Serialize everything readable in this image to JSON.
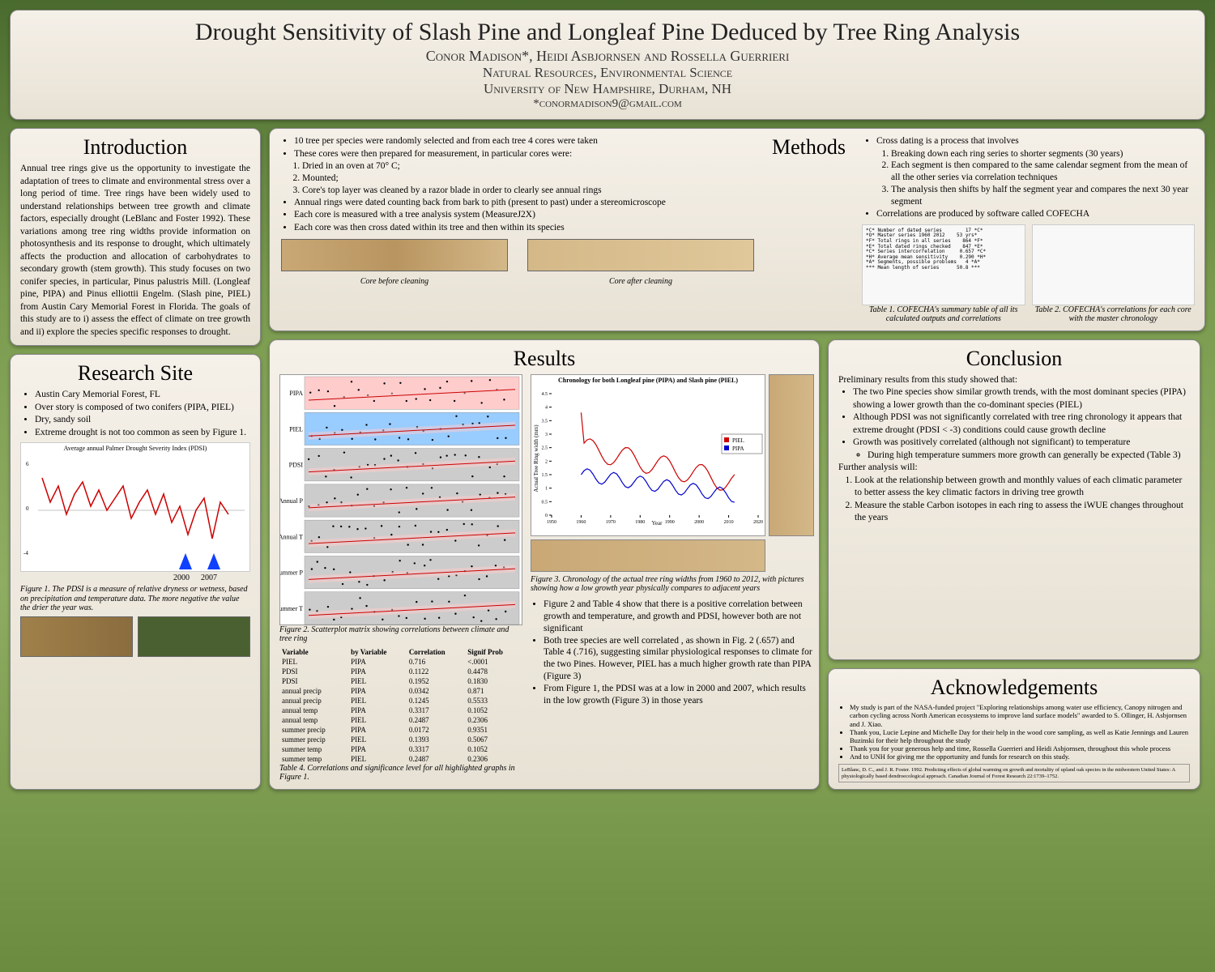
{
  "header": {
    "title": "Drought Sensitivity of Slash Pine and Longleaf Pine Deduced by Tree Ring Analysis",
    "authors": "Conor Madison*, Heidi Asbjornsen and Rossella Guerrieri",
    "dept": "Natural Resources, Environmental Science",
    "univ": "University of New Hampshire, Durham, NH",
    "email": "*conormadison9@gmail.com"
  },
  "intro": {
    "title": "Introduction",
    "text": "Annual tree rings give us the opportunity to investigate the adaptation of trees to climate and environmental stress over a long period of time. Tree rings have been widely used to understand relationships between tree growth and climate factors, especially drought (LeBlanc and Foster 1992). These variations among tree ring widths provide information on photosynthesis and its response to drought, which ultimately affects the production and allocation of carbohydrates to secondary growth (stem growth). This study focuses on two conifer species, in particular, Pinus palustris Mill. (Longleaf pine, PIPA) and Pinus elliottii Engelm. (Slash pine, PIEL) from Austin Cary Memorial Forest in Florida. The goals of this study are to i) assess the effect of climate on tree growth and ii) explore the species specific responses to drought."
  },
  "research": {
    "title": "Research Site",
    "items": [
      "Austin Cary Memorial Forest, FL",
      "Over story is composed of two conifers (PIPA, PIEL)",
      "Dry, sandy soil",
      "Extreme drought is not too common as seen by Figure 1."
    ],
    "chart_title": "Average annual Palmer Drought Severity Index (PDSI)",
    "fig1_caption": "Figure 1. The PDSI is a measure of relative dryness or wetness, based on precipitation and temperature data. The more negative the value the drier the year was.",
    "year1": "2000",
    "year2": "2007",
    "pdsi": {
      "ylim": [
        -4,
        6
      ],
      "yticks": [
        -4,
        -3,
        -2,
        -1,
        0,
        1,
        2,
        3,
        4,
        5,
        6
      ],
      "line_color": "#cc0000",
      "zero_line_color": "#888888",
      "bg": "#ffffff"
    }
  },
  "methods": {
    "title": "Methods",
    "left_items": [
      "10 tree per species were randomly selected and from each tree 4 cores were taken",
      "These cores were then prepared for measurement, in particular cores were:"
    ],
    "prep_steps": [
      "Dried in an oven at 70° C;",
      "Mounted;",
      "Core's top layer was cleaned by a razor blade in order to clearly see annual rings"
    ],
    "left_items2": [
      "Annual rings were dated counting back from bark to pith (present to past) under a stereomicroscope",
      "Each core is measured with a tree analysis system (MeasureJ2X)",
      "Each core was then cross dated within its tree and then within its species"
    ],
    "core_before": "Core before cleaning",
    "core_after": "Core after cleaning",
    "right_intro": "Cross dating is a process that involves",
    "right_steps": [
      "Breaking down each ring series to shorter segments (30 years)",
      "Each segment is then compared to the same calendar segment from the mean of all the other series via correlation techniques",
      "The analysis then shifts by half the segment year and compares the next 30 year segment"
    ],
    "right_item2": "Correlations are produced by software called COFECHA",
    "table1_caption": "Table 1. COFECHA's summary table of all its calculated outputs and correlations",
    "table2_caption": "Table 2. COFECHA's correlations for each core with the master chronology",
    "cofecha_text": "*C* Number of dated series        17 *C*\n*O* Master series 1960 2012    53 yrs*\n*F* Total rings in all series    864 *F*\n*E* Total dated rings checked    847 *E*\n*C* Series intercorrelation     0.657 *C*\n*H* Average mean sensitivity    0.290 *H*\n*A* Segments, possible problems   4 *A*\n*** Mean length of series      50.8 ***"
  },
  "results": {
    "title": "Results",
    "fig2_caption": "Figure 2. Scatterplot matrix showing correlations between climate and tree ring",
    "fig3_caption": "Figure 3. Chronology of the actual tree ring widths from 1960 to 2012, with pictures showing how a low growth year physically compares to adjacent years",
    "table4_caption": "Table 4. Correlations and significance level for all highlighted graphs in Figure 1.",
    "chron_title": "Chronology for both Longleaf pine (PIPA) and Slash pine (PIEL)",
    "chron": {
      "xlim": [
        1950,
        2020
      ],
      "xticks": [
        1950,
        1960,
        1970,
        1980,
        1990,
        2000,
        2010,
        2020
      ],
      "ylim": [
        0,
        4.5
      ],
      "yticks": [
        0,
        0.5,
        1,
        1.5,
        2,
        2.5,
        3,
        3.5,
        4,
        4.5
      ],
      "ylabel": "Actual Tree Ring width (mm)",
      "xlabel": "Year",
      "series": [
        {
          "name": "PIEL",
          "color": "#cc0000",
          "marker": "diamond"
        },
        {
          "name": "PIPA",
          "color": "#0000cc",
          "marker": "square"
        }
      ]
    },
    "scatter": {
      "rows": [
        "PIPA",
        "PIEL",
        "PDSI",
        "Annual P",
        "Annual T",
        "Summer P",
        "Summer T"
      ],
      "row_colors": [
        "#ffcccc",
        "#99ccff",
        "#cccccc",
        "#cccccc",
        "#cccccc",
        "#cccccc",
        "#cccccc"
      ],
      "yticks": [
        [
          0.8,
          0.9,
          1.0,
          1.1,
          1.2
        ],
        [
          0.8,
          0.9,
          1.0,
          1.1
        ],
        [
          -2,
          -1,
          0,
          1
        ],
        [
          95,
          100,
          105,
          110
        ],
        [
          22.5,
          22.8
        ],
        [
          25.5,
          26,
          26.5
        ],
        [
          25.5,
          75,
          125,
          175
        ]
      ],
      "marker_color": "#000000",
      "fit_color": "#cc0000",
      "band_color": "#ffcccc"
    },
    "table4": {
      "headers": [
        "Variable",
        "by Variable",
        "Correlation",
        "Signif Prob"
      ],
      "rows": [
        [
          "PIEL",
          "PIPA",
          "0.716",
          "<.0001"
        ],
        [
          "PDSI",
          "PIPA",
          "0.1122",
          "0.4478"
        ],
        [
          "PDSI",
          "PIEL",
          "0.1952",
          "0.1830"
        ],
        [
          "annual precip",
          "PIPA",
          "0.0342",
          "0.871"
        ],
        [
          "annual precip",
          "PIEL",
          "0.1245",
          "0.5533"
        ],
        [
          "annual temp",
          "PIPA",
          "0.3317",
          "0.1052"
        ],
        [
          "annual temp",
          "PIEL",
          "0.2487",
          "0.2306"
        ],
        [
          "summer precip",
          "PIPA",
          "0.0172",
          "0.9351"
        ],
        [
          "summer precip",
          "PIEL",
          "0.1393",
          "0.5067"
        ],
        [
          "summer temp",
          "PIPA",
          "0.3317",
          "0.1052"
        ],
        [
          "summer temp",
          "PIEL",
          "0.2487",
          "0.2306"
        ]
      ]
    },
    "bullets": [
      "Figure 2 and Table 4 show that there is a positive correlation between growth and temperature, and growth and PDSI, however both are not significant",
      "Both tree species are well correlated , as shown in Fig. 2 (.657) and Table 4 (.716), suggesting similar physiological responses to climate for the two Pines. However, PIEL has a much higher growth rate than PIPA (Figure 3)",
      "From Figure 1, the PDSI was at a low in 2000 and 2007, which results in the low growth (Figure 3) in those years"
    ]
  },
  "conclusion": {
    "title": "Conclusion",
    "intro": "Preliminary results from this study showed that:",
    "items": [
      "The two Pine species show similar growth trends, with the most dominant species (PIPA) showing a lower growth than the co-dominant species (PIEL)",
      "Although PDSI was not significantly correlated with tree ring chronology it appears that extreme drought (PDSI < -3) conditions could cause growth decline",
      "Growth was positively correlated (although not significant) to temperature"
    ],
    "sub_item": "During high temperature summers more growth can generally be expected (Table 3)",
    "further": "Further analysis will:",
    "further_items": [
      "Look at the relationship between growth and monthly values of each climatic parameter to better assess the key climatic factors in driving tree growth",
      "Measure the stable Carbon isotopes in each ring to assess the iWUE changes throughout the years"
    ]
  },
  "ack": {
    "title": "Acknowledgements",
    "items": [
      "My study is part of the NASA-funded project \"Exploring relationships among water use efficiency, Canopy nitrogen and carbon cycling across North American ecosystems to improve land surface models\" awarded to S. Ollinger, H. Asbjornsen and J. Xiao.",
      "Thank you, Lucie Lepine and Michelle Day for their help in the wood core sampling, as well as Katie Jennings and Lauren Buzinski for their help throughout the study",
      "Thank you for your generous help and time, Rossella Guerrieri and Heidi Asbjornsen, throughout this whole process",
      "And to UNH for giving me the opportunity and funds for research on this study."
    ],
    "ref": "LeBlanc, D. C., and J. R. Foster. 1992. Predicting effects of global warming on growth and mortality of upland oak species in the midwestern United States: A physiologically based dendroecological approach. Canadian Journal of Forest Research 22:1739–1752."
  }
}
